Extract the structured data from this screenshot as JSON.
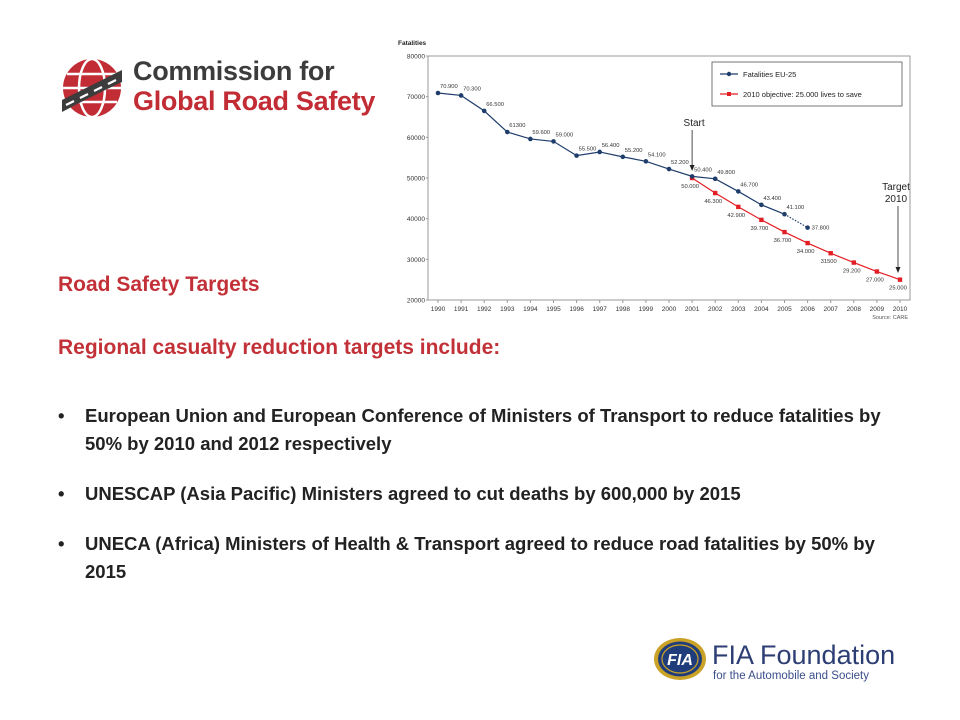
{
  "logo_top": {
    "line1": "Commission for",
    "line2": "Global Road Safety"
  },
  "headings": {
    "title": "Road Safety Targets",
    "subtitle": "Regional casualty reduction targets include:"
  },
  "bullets": [
    "European Union and European Conference of Ministers of Transport to reduce fatalities by 50% by 2010 and 2012 respectively",
    "UNESCAP (Asia Pacific) Ministers agreed to cut deaths by 600,000 by 2015",
    "UNECA (Africa) Ministers of Health & Transport agreed to reduce road fatalities by 50% by 2015"
  ],
  "logo_bottom": {
    "badge": "FIA",
    "name": "FIA Foundation",
    "tagline": "for the Automobile and Society"
  },
  "chart_data": {
    "type": "line",
    "ylabel": "Fatalities",
    "ylim": [
      20000,
      80000
    ],
    "yticks": [
      20000,
      30000,
      40000,
      50000,
      60000,
      70000,
      80000
    ],
    "x": [
      "1990",
      "1991",
      "1992",
      "1993",
      "1994",
      "1995",
      "1996",
      "1997",
      "1998",
      "1999",
      "2000",
      "2001",
      "2002",
      "2003",
      "2004",
      "2005",
      "2006",
      "2007",
      "2008",
      "2009",
      "2010"
    ],
    "source": "Source: CARE",
    "legend_position": "top-right",
    "series": [
      {
        "name": "Fatalities EU-25",
        "color": "#1f3d6b",
        "x": [
          "1990",
          "1991",
          "1992",
          "1993",
          "1994",
          "1995",
          "1996",
          "1997",
          "1998",
          "1999",
          "2000",
          "2001",
          "2002",
          "2003",
          "2004",
          "2005"
        ],
        "values": [
          70900,
          70300,
          66500,
          61300,
          59600,
          59000,
          55500,
          56400,
          55200,
          54100,
          52200,
          50400,
          49800,
          46700,
          43400,
          41100
        ],
        "labels": [
          "70.900",
          "70.300",
          "66.500",
          "61300",
          "59.600",
          "59.000",
          "55.500",
          "56.400",
          "55.200",
          "54.100",
          "52.200",
          "50.400",
          "49.800",
          "46.700",
          "43.400",
          "41.100"
        ],
        "projection": {
          "x": "2006",
          "value": 37800,
          "label": "37.800"
        }
      },
      {
        "name": "2010 objective: 25.000 lives to save",
        "color": "#e31e24",
        "x": [
          "2001",
          "2002",
          "2003",
          "2004",
          "2005",
          "2006",
          "2007",
          "2008",
          "2009",
          "2010"
        ],
        "values": [
          50000,
          46300,
          42900,
          39700,
          36700,
          34000,
          31500,
          29200,
          27000,
          25000
        ],
        "labels": [
          "50.000",
          "46.300",
          "42.900",
          "39.700",
          "36.700",
          "34.000",
          "31500",
          "29.200",
          "27.000",
          "25.000"
        ]
      }
    ],
    "annotations": [
      {
        "text": "Start",
        "x": "2001"
      },
      {
        "text": "Target",
        "text2": "2010",
        "x": "2010"
      }
    ]
  }
}
